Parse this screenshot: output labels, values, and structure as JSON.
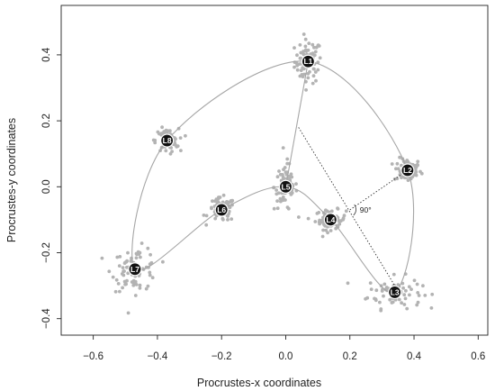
{
  "chart_data": {
    "type": "scatter",
    "title": "",
    "xlabel": "Procrustes-x coordinates",
    "ylabel": "Procrustes-y coordinates",
    "xlim": [
      -0.7,
      0.63
    ],
    "ylim": [
      -0.45,
      0.55
    ],
    "x_ticks": [
      -0.6,
      -0.4,
      -0.2,
      0.0,
      0.2,
      0.4,
      0.6
    ],
    "y_ticks": [
      -0.4,
      -0.2,
      0.0,
      0.2,
      0.4
    ],
    "x_tick_labels": [
      "−0.6",
      "−0.4",
      "−0.2",
      "0.0",
      "0.2",
      "0.4",
      "0.6"
    ],
    "y_tick_labels": [
      "−0.4",
      "−0.2",
      "0.0",
      "0.2",
      "0.4"
    ],
    "grid": false,
    "landmarks": [
      {
        "label": "L1",
        "x": 0.07,
        "y": 0.38
      },
      {
        "label": "L2",
        "x": 0.38,
        "y": 0.05
      },
      {
        "label": "L3",
        "x": 0.34,
        "y": -0.32
      },
      {
        "label": "L4",
        "x": 0.14,
        "y": -0.1
      },
      {
        "label": "L5",
        "x": 0.0,
        "y": 0.0
      },
      {
        "label": "L6",
        "x": -0.2,
        "y": -0.07
      },
      {
        "label": "L7",
        "x": -0.47,
        "y": -0.25
      },
      {
        "label": "L8",
        "x": -0.37,
        "y": 0.14
      }
    ],
    "outline_order": [
      "L7",
      "L8",
      "L1",
      "L2",
      "L3",
      "L4",
      "L5",
      "L6",
      "L7"
    ],
    "chord": [
      "L5",
      "L1"
    ],
    "perpendicular": {
      "from": [
        0.04,
        0.18
      ],
      "to": [
        0.34,
        -0.3
      ],
      "branch_to": "L2",
      "corner": [
        0.2,
        -0.07
      ]
    },
    "annotation": "90°",
    "scatter_spread": [
      {
        "label": "L1",
        "sx": 0.035,
        "sy": 0.055
      },
      {
        "label": "L2",
        "sx": 0.035,
        "sy": 0.03
      },
      {
        "label": "L3",
        "sx": 0.07,
        "sy": 0.04
      },
      {
        "label": "L4",
        "sx": 0.04,
        "sy": 0.025
      },
      {
        "label": "L5",
        "sx": 0.03,
        "sy": 0.06
      },
      {
        "label": "L6",
        "sx": 0.035,
        "sy": 0.03
      },
      {
        "label": "L7",
        "sx": 0.06,
        "sy": 0.055
      },
      {
        "label": "L8",
        "sx": 0.03,
        "sy": 0.03
      }
    ],
    "colors": {
      "points": "#b3b3b3",
      "outline": "#a6a6a6",
      "landmark": "#111111",
      "axis": "#222222"
    }
  }
}
